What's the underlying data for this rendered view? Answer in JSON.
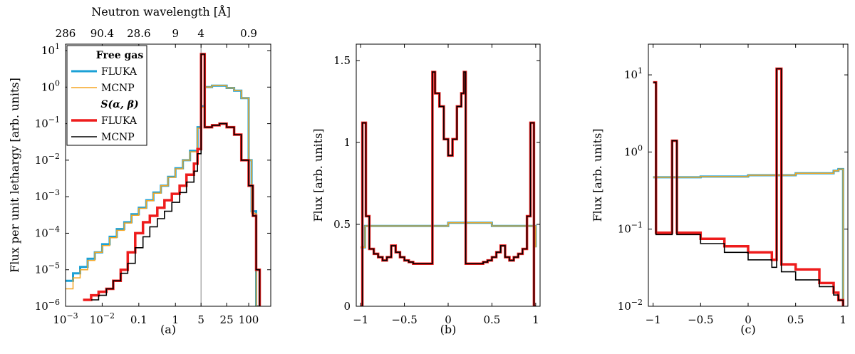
{
  "colors": {
    "free_fluka": "#1ba1d6",
    "free_mcnp": "#f5a623",
    "sab_fluka": "#ee1c1c",
    "sab_mcnp": "#000000",
    "refline": "#888888"
  },
  "chart_data": [
    {
      "type": "line",
      "caption": "(a)",
      "xscale": "log",
      "yscale": "log",
      "xlim": [
        0.001,
        400
      ],
      "ylim": [
        1e-06,
        15
      ],
      "ylabel": "Flux per unit lethargy [arb. units]",
      "xtick_labels": [
        "10^{-3}",
        "10^{-2}",
        "0.1",
        "1",
        "5",
        "25",
        "100"
      ],
      "xtick_values": [
        0.001,
        0.01,
        0.1,
        1,
        5,
        25,
        100
      ],
      "ytick_values": [
        1e-06,
        1e-05,
        0.0001,
        0.001,
        0.01,
        0.1,
        1,
        10
      ],
      "top_axis": {
        "label": "Neutron wavelength [Å]",
        "tick_labels": [
          "286",
          "90.4",
          "28.6",
          "9",
          "4",
          "0.9"
        ],
        "tick_positions_energy": [
          0.001,
          0.01,
          0.1,
          1,
          5,
          100
        ]
      },
      "vline_x": 5,
      "legend": {
        "groups": [
          {
            "title": "Free gas",
            "entries": [
              "FLUKA",
              "MCNP"
            ]
          },
          {
            "title": "S(α, β)",
            "entries": [
              "FLUKA",
              "MCNP"
            ]
          }
        ]
      },
      "series": [
        {
          "group": "Free gas",
          "name": "FLUKA",
          "color": "#1ba1d6",
          "x": [
            0.001,
            0.0016,
            0.0025,
            0.004,
            0.0063,
            0.01,
            0.016,
            0.025,
            0.04,
            0.063,
            0.1,
            0.16,
            0.25,
            0.4,
            0.63,
            1,
            1.6,
            2.5,
            4,
            5,
            6.3,
            10,
            16,
            25,
            40,
            63,
            100,
            120,
            160,
            200
          ],
          "y": [
            5e-06,
            8e-06,
            1.2e-05,
            2e-05,
            3e-05,
            5e-05,
            8e-05,
            0.00013,
            0.0002,
            0.00033,
            0.0005,
            0.0008,
            0.0013,
            0.002,
            0.0035,
            0.006,
            0.01,
            0.018,
            0.08,
            0.3,
            1.0,
            1.1,
            1.1,
            0.95,
            0.8,
            0.5,
            0.01,
            0.0004,
            1e-06,
            1e-06
          ]
        },
        {
          "group": "Free gas",
          "name": "MCNP",
          "color": "#f5a623",
          "x": [
            0.001,
            0.0016,
            0.0025,
            0.004,
            0.0063,
            0.01,
            0.016,
            0.025,
            0.04,
            0.063,
            0.1,
            0.16,
            0.25,
            0.4,
            0.63,
            1,
            1.6,
            2.5,
            4,
            5,
            6.3,
            10,
            16,
            25,
            40,
            63,
            100,
            120,
            160,
            200
          ],
          "y": [
            3e-06,
            6e-06,
            1e-05,
            1.8e-05,
            3e-05,
            4.6e-05,
            7.5e-05,
            0.00012,
            0.00019,
            0.00031,
            0.00048,
            0.00078,
            0.00125,
            0.002,
            0.0034,
            0.0058,
            0.01,
            0.017,
            0.075,
            0.28,
            1.0,
            1.1,
            1.1,
            0.95,
            0.8,
            0.5,
            0.01,
            0.00035,
            1e-06,
            1e-06
          ]
        },
        {
          "group": "S(α, β)",
          "name": "FLUKA",
          "color": "#ee1c1c",
          "x": [
            0.003,
            0.005,
            0.008,
            0.013,
            0.02,
            0.032,
            0.05,
            0.08,
            0.13,
            0.2,
            0.32,
            0.5,
            0.8,
            1.3,
            2,
            3.2,
            4,
            5,
            6.3,
            10,
            16,
            25,
            40,
            63,
            100,
            130,
            160,
            200
          ],
          "y": [
            1.5e-06,
            2e-06,
            2.5e-06,
            3e-06,
            5e-06,
            1e-05,
            3e-05,
            0.0001,
            0.0002,
            0.0003,
            0.0005,
            0.0008,
            0.0012,
            0.002,
            0.004,
            0.008,
            0.02,
            8,
            0.08,
            0.09,
            0.1,
            0.08,
            0.05,
            0.01,
            0.002,
            0.0003,
            1e-05,
            1e-06
          ]
        },
        {
          "group": "S(α, β)",
          "name": "MCNP",
          "color": "#000000",
          "x": [
            0.005,
            0.008,
            0.013,
            0.02,
            0.032,
            0.05,
            0.08,
            0.13,
            0.2,
            0.32,
            0.5,
            0.8,
            1.3,
            2,
            3.2,
            4,
            5,
            6.3,
            10,
            16,
            25,
            40,
            63,
            100,
            130,
            160,
            200
          ],
          "y": [
            1.5e-06,
            2e-06,
            3e-06,
            5e-06,
            8e-06,
            1.5e-05,
            4e-05,
            8e-05,
            0.00015,
            0.00025,
            0.0004,
            0.0007,
            0.0013,
            0.0025,
            0.005,
            0.015,
            8,
            0.08,
            0.09,
            0.1,
            0.08,
            0.05,
            0.01,
            0.002,
            0.0003,
            1e-05,
            1e-06
          ]
        }
      ]
    },
    {
      "type": "line",
      "caption": "(b)",
      "xscale": "linear",
      "yscale": "linear",
      "xlim": [
        -1.05,
        1.05
      ],
      "ylim": [
        0,
        1.6
      ],
      "ylabel": "Flux [arb. units]",
      "xtick_labels": [
        "−1",
        "−0.5",
        "0",
        "0.5",
        "1"
      ],
      "xtick_values": [
        -1,
        -0.5,
        0,
        0.5,
        1
      ],
      "ytick_labels": [
        "0",
        "0.5",
        "1",
        "1.5"
      ],
      "ytick_values": [
        0,
        0.5,
        1,
        1.5
      ],
      "series": [
        {
          "name": "Free gas FLUKA",
          "color": "#1ba1d6",
          "x": [
            -1,
            -0.95,
            -0.5,
            0,
            0.5,
            0.95,
            1
          ],
          "y": [
            0.36,
            0.49,
            0.49,
            0.51,
            0.49,
            0.49,
            0.36
          ]
        },
        {
          "name": "Free gas MCNP",
          "color": "#f5a623",
          "x": [
            -1,
            -0.95,
            -0.5,
            0,
            0.5,
            0.95,
            1
          ],
          "y": [
            0.36,
            0.49,
            0.49,
            0.51,
            0.49,
            0.49,
            0.36
          ]
        },
        {
          "name": "S(α, β) FLUKA",
          "color": "#ee1c1c",
          "x": [
            -1,
            -0.98,
            -0.94,
            -0.9,
            -0.85,
            -0.8,
            -0.75,
            -0.7,
            -0.65,
            -0.6,
            -0.55,
            -0.5,
            -0.45,
            -0.4,
            -0.3,
            -0.2,
            -0.18,
            -0.15,
            -0.1,
            -0.05,
            0,
            0.05,
            0.1,
            0.15,
            0.18,
            0.2,
            0.3,
            0.4,
            0.45,
            0.5,
            0.55,
            0.6,
            0.65,
            0.7,
            0.75,
            0.8,
            0.85,
            0.9,
            0.94,
            0.98,
            1
          ],
          "y": [
            0,
            1.12,
            0.55,
            0.35,
            0.32,
            0.3,
            0.28,
            0.3,
            0.37,
            0.33,
            0.3,
            0.28,
            0.27,
            0.26,
            0.26,
            0.26,
            1.43,
            1.3,
            1.22,
            1.02,
            0.92,
            1.02,
            1.22,
            1.3,
            1.43,
            0.26,
            0.26,
            0.27,
            0.28,
            0.3,
            0.33,
            0.37,
            0.3,
            0.28,
            0.3,
            0.32,
            0.35,
            0.55,
            1.12,
            0,
            0
          ]
        },
        {
          "name": "S(α, β) MCNP",
          "color": "#000000",
          "x": [
            -1,
            -0.98,
            -0.94,
            -0.9,
            -0.85,
            -0.8,
            -0.75,
            -0.7,
            -0.65,
            -0.6,
            -0.55,
            -0.5,
            -0.45,
            -0.4,
            -0.3,
            -0.2,
            -0.18,
            -0.15,
            -0.1,
            -0.05,
            0,
            0.05,
            0.1,
            0.15,
            0.18,
            0.2,
            0.3,
            0.4,
            0.45,
            0.5,
            0.55,
            0.6,
            0.65,
            0.7,
            0.75,
            0.8,
            0.85,
            0.9,
            0.94,
            0.98,
            1
          ],
          "y": [
            0,
            1.12,
            0.55,
            0.35,
            0.32,
            0.3,
            0.28,
            0.3,
            0.37,
            0.33,
            0.3,
            0.28,
            0.27,
            0.26,
            0.26,
            0.26,
            1.43,
            1.3,
            1.22,
            1.02,
            0.92,
            1.02,
            1.22,
            1.3,
            1.43,
            0.26,
            0.26,
            0.27,
            0.28,
            0.3,
            0.33,
            0.37,
            0.3,
            0.28,
            0.3,
            0.32,
            0.35,
            0.55,
            1.12,
            0,
            0
          ]
        }
      ]
    },
    {
      "type": "line",
      "caption": "(c)",
      "xscale": "linear",
      "yscale": "log",
      "xlim": [
        -1.05,
        1.05
      ],
      "ylim": [
        0.01,
        25
      ],
      "ylabel": "Flux [arb. units]",
      "xtick_labels": [
        "−1",
        "−0.5",
        "0",
        "0.5",
        "1"
      ],
      "xtick_values": [
        -1,
        -0.5,
        0,
        0.5,
        1
      ],
      "ytick_values": [
        0.01,
        0.1,
        1,
        10
      ],
      "series": [
        {
          "name": "Free gas FLUKA",
          "color": "#1ba1d6",
          "x": [
            -1,
            -0.95,
            -0.5,
            0,
            0.5,
            0.9,
            0.95,
            1
          ],
          "y": [
            0.47,
            0.47,
            0.48,
            0.5,
            0.53,
            0.57,
            0.6,
            0.01
          ]
        },
        {
          "name": "Free gas MCNP",
          "color": "#f5a623",
          "x": [
            -1,
            -0.95,
            -0.5,
            0,
            0.5,
            0.9,
            0.95,
            1
          ],
          "y": [
            0.47,
            0.47,
            0.48,
            0.5,
            0.53,
            0.57,
            0.6,
            0.01
          ]
        },
        {
          "name": "S(α, β) FLUKA",
          "color": "#ee1c1c",
          "x": [
            -1,
            -0.97,
            -0.85,
            -0.8,
            -0.75,
            -0.5,
            -0.25,
            0,
            0.25,
            0.3,
            0.35,
            0.5,
            0.75,
            0.9,
            0.95,
            1
          ],
          "y": [
            8,
            0.09,
            0.09,
            1.4,
            0.09,
            0.075,
            0.06,
            0.05,
            0.04,
            12,
            0.035,
            0.03,
            0.02,
            0.015,
            0.012,
            0.01
          ]
        },
        {
          "name": "S(α, β) MCNP",
          "color": "#000000",
          "x": [
            -1,
            -0.97,
            -0.85,
            -0.8,
            -0.75,
            -0.5,
            -0.25,
            0,
            0.25,
            0.3,
            0.35,
            0.5,
            0.75,
            0.9,
            0.95,
            1
          ],
          "y": [
            8,
            0.085,
            0.085,
            1.4,
            0.085,
            0.065,
            0.05,
            0.04,
            0.032,
            12,
            0.028,
            0.022,
            0.018,
            0.014,
            0.012,
            0.01
          ]
        }
      ]
    }
  ]
}
